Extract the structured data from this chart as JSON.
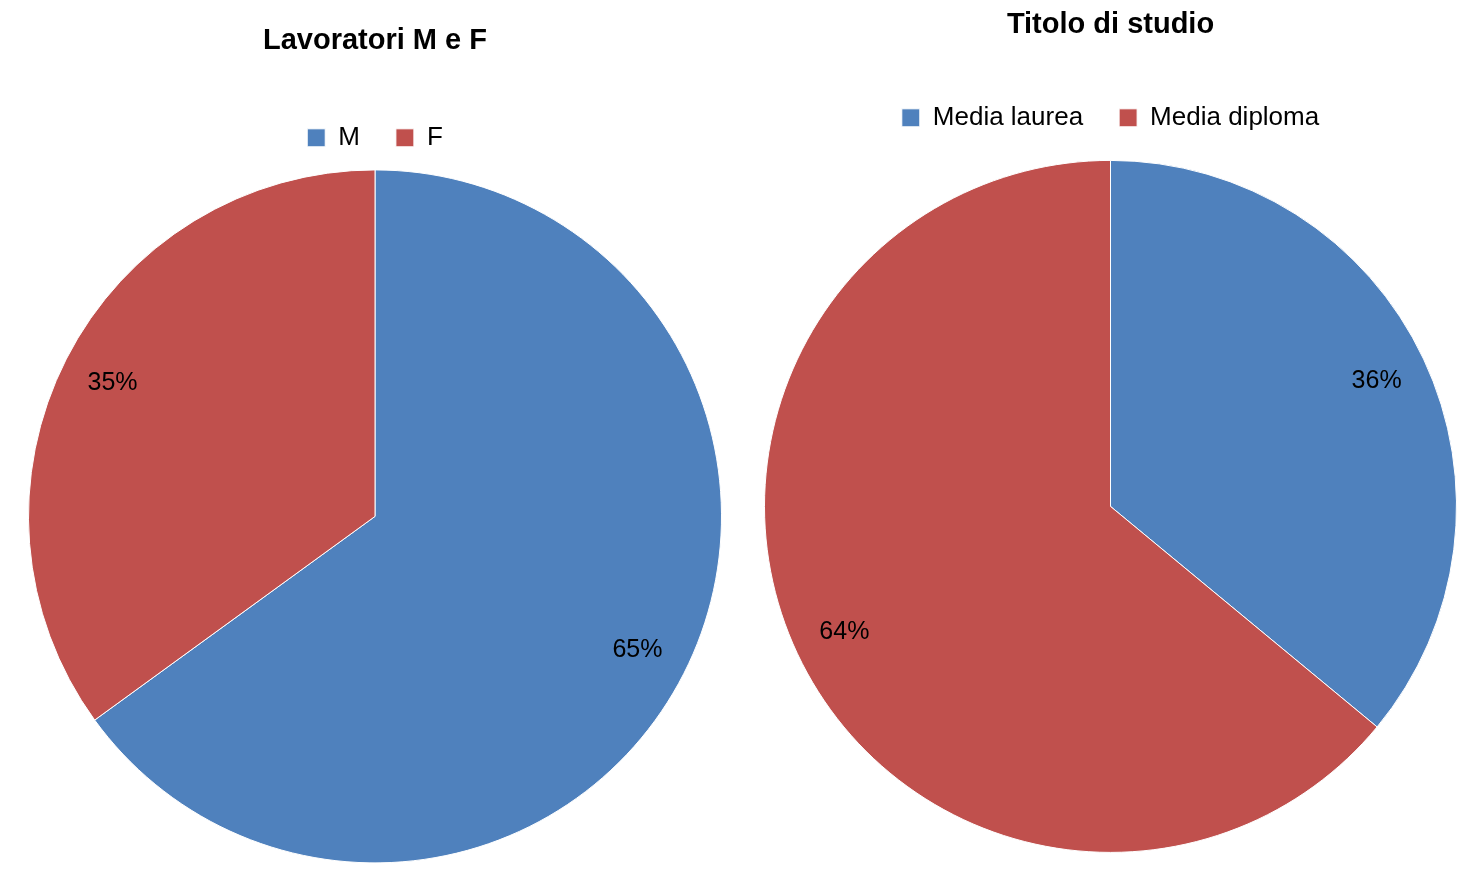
{
  "chart_data": [
    {
      "type": "pie",
      "title": "Lavoratori M e F",
      "categories": [
        "M",
        "F"
      ],
      "values": [
        65,
        35
      ],
      "colors": [
        "#4f81bd",
        "#c0504d"
      ],
      "value_labels": [
        "65%",
        "35%"
      ],
      "legend": "top"
    },
    {
      "type": "pie",
      "title": "Titolo di studio",
      "categories": [
        "Media laurea",
        "Media diploma"
      ],
      "values": [
        36,
        64
      ],
      "colors": [
        "#4f81bd",
        "#c0504d"
      ],
      "value_labels": [
        "36%",
        "64%"
      ],
      "legend": "top"
    }
  ]
}
